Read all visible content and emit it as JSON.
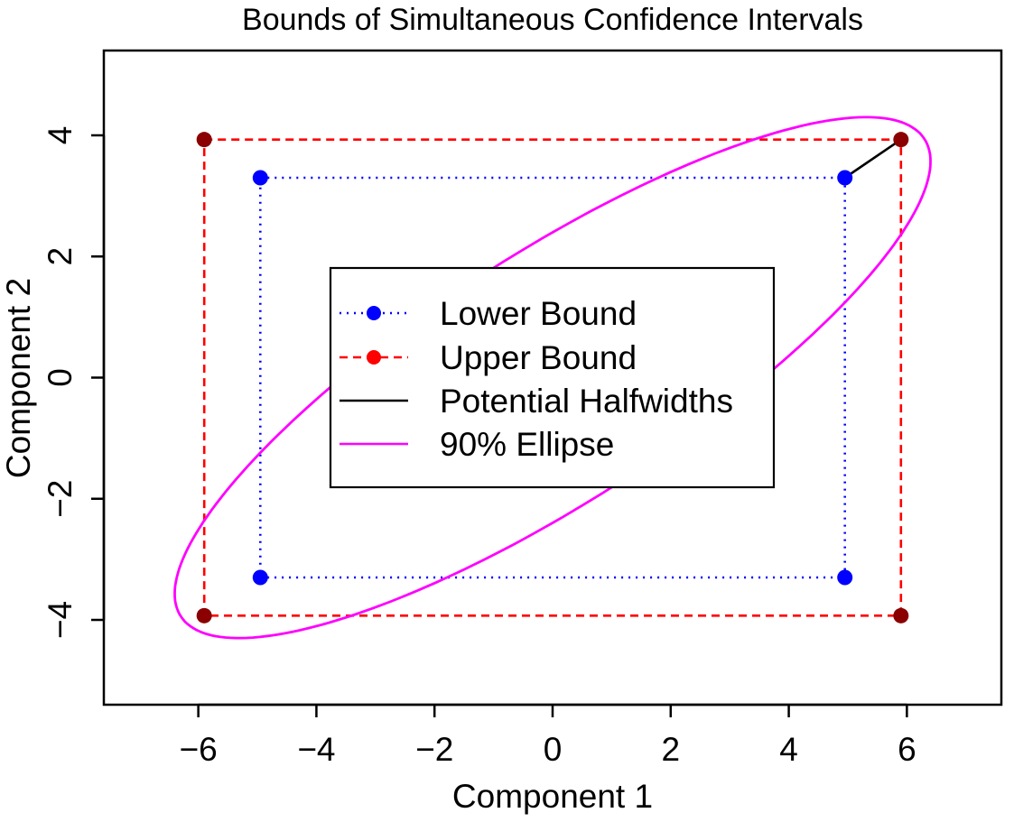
{
  "chart_data": {
    "type": "scatter",
    "title": "Bounds of Simultaneous Confidence Intervals",
    "xlabel": "Component 1",
    "ylabel": "Component 2",
    "xlim": [
      -7.6,
      7.6
    ],
    "ylim": [
      -5.4,
      5.4
    ],
    "xticks": [
      -6,
      -4,
      -2,
      0,
      2,
      4,
      6
    ],
    "yticks": [
      -4,
      -2,
      0,
      2,
      4
    ],
    "xtick_labels": [
      "−6",
      "−4",
      "−2",
      "0",
      "2",
      "4",
      "6"
    ],
    "ytick_labels": [
      "−4",
      "−2",
      "0",
      "2",
      "4"
    ],
    "grid": false,
    "legend_position": "center",
    "series": [
      {
        "name": "Lower Bound",
        "style": "dotted",
        "marker": "filled-circle",
        "color": "#0000ff",
        "x": [
          -4.95,
          4.95,
          4.95,
          -4.95,
          -4.95
        ],
        "y": [
          3.3,
          3.3,
          -3.3,
          -3.3,
          3.3
        ]
      },
      {
        "name": "Upper Bound",
        "style": "dashed",
        "marker": "filled-circle",
        "color": "#ff0000",
        "marker_color": "#8b0000",
        "x": [
          -5.9,
          5.9,
          5.9,
          -5.9,
          -5.9
        ],
        "y": [
          3.93,
          3.93,
          -3.93,
          -3.93,
          3.93
        ]
      },
      {
        "name": "Potential Halfwidths",
        "style": "solid",
        "color": "#000000",
        "x": [
          4.95,
          5.9
        ],
        "y": [
          3.3,
          3.93
        ]
      },
      {
        "name": "90% Ellipse",
        "style": "solid",
        "color": "#ff00ff",
        "center": [
          0,
          0
        ],
        "extreme_x": 6.4,
        "extreme_y": 4.3,
        "ellipse_correlation": 0.83
      }
    ]
  }
}
